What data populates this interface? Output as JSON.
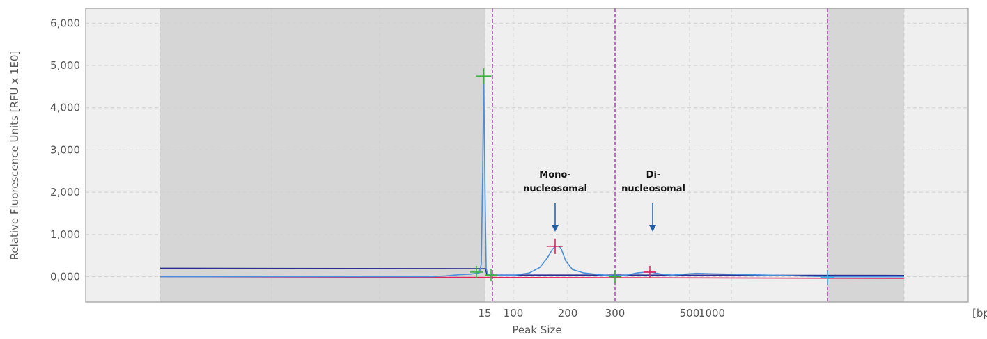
{
  "chart_data": {
    "type": "line",
    "xlabel": "Peak Size",
    "ylabel": "Relative Fluorescence Units [RFU x 1E0]",
    "x_unit": "[bp]",
    "x_ticks": [
      "15",
      "100",
      "200",
      "300",
      "500",
      "1000"
    ],
    "y_ticks": [
      "0,000",
      "1,000",
      "2,000",
      "3,000",
      "4,000",
      "5,000",
      "6,000"
    ],
    "ylim": [
      -600,
      6350
    ],
    "grid": true,
    "annotations": [
      {
        "line1": "Mono-",
        "line2": "nucleosomal",
        "x_bp": 170
      },
      {
        "line1": "Di-",
        "line2": "nucleosomal",
        "x_bp": 400
      }
    ],
    "markers_bp": [
      15,
      290,
      2500
    ],
    "peaks": [
      {
        "x_bp": 15,
        "y": 4750
      },
      {
        "x_bp": 170,
        "y": 720
      },
      {
        "x_bp": 400,
        "y": 110
      }
    ],
    "series": [
      {
        "values_desc": "sample trace",
        "color": "#4a90d9"
      },
      {
        "values_desc": "baseline",
        "color": "#2d2f8f"
      },
      {
        "values_desc": "reference",
        "color": "#e0245e"
      }
    ],
    "colors": {
      "plot_bg": "#efefef",
      "shaded": "#d6d6d6",
      "trace": "#4a90d9",
      "baseline": "#2d2f8f",
      "reference": "#e0245e",
      "marker_line": "#a04aa8",
      "annot_arrow": "#1f5ea8",
      "peak_green": "#3cb043",
      "peak_red": "#e0245e",
      "peak_cyan": "#42b4e6"
    }
  }
}
